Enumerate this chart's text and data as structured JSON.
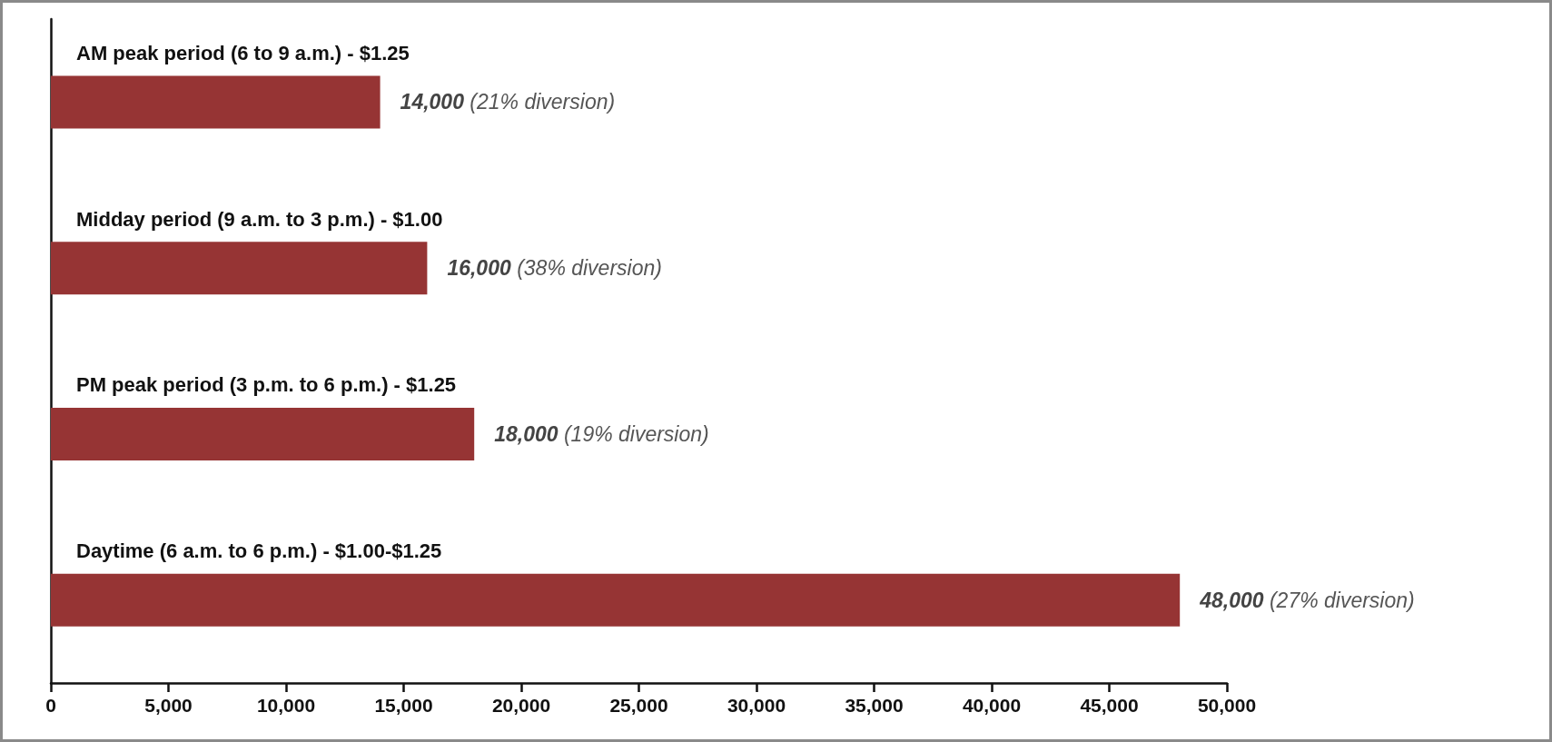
{
  "chart_data": {
    "type": "bar",
    "orientation": "horizontal",
    "categories": [
      "AM peak period (6 to 9 a.m.) - $1.25",
      "Midday period (9 a.m. to 3 p.m.) - $1.00",
      "PM peak period (3 p.m. to 6 p.m.) - $1.25",
      "Daytime (6 a.m. to 6 p.m.) - $1.00-$1.25"
    ],
    "values": [
      14000,
      16000,
      18000,
      48000
    ],
    "color": "#963434",
    "value_labels": [
      "14,000 (21% diversion)",
      "16,000 (38% diversion)",
      "18,000 (19% diversion)",
      "48,000 (27% diversion)"
    ],
    "xlim": [
      0,
      50000
    ],
    "xticks": [
      0,
      {
        "value": 5000,
        "label": "5,000"
      },
      {
        "value": 10000,
        "label": "10,000"
      },
      {
        "value": 15000,
        "label": "15,000"
      },
      {
        "value": 20000,
        "label": "20,000"
      },
      {
        "value": 25000,
        "label": "25,000"
      },
      {
        "value": 30000,
        "label": "30,000"
      },
      {
        "value": 35000,
        "label": "35,000"
      },
      {
        "value": 40000,
        "label": "40,000"
      },
      {
        "value": 45000,
        "label": "45,000"
      },
      {
        "value": 50000,
        "label": "50,000"
      }
    ]
  }
}
